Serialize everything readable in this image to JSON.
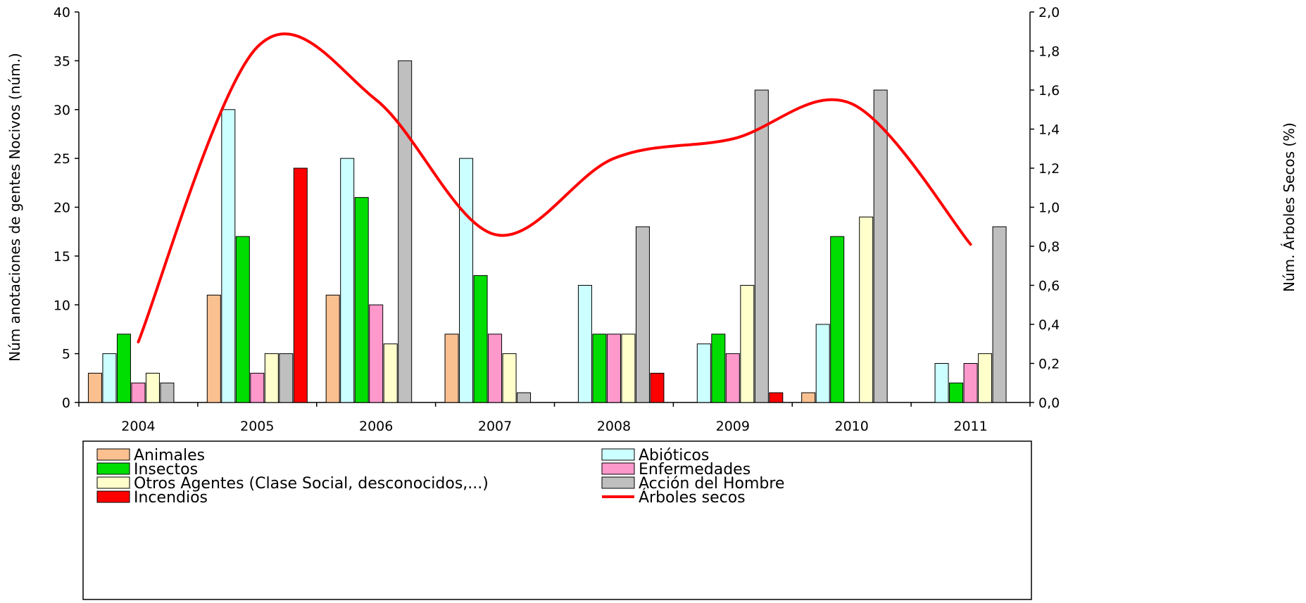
{
  "chart_data": {
    "type": "bar",
    "categories": [
      "2004",
      "2005",
      "2006",
      "2007",
      "2008",
      "2009",
      "2010",
      "2011"
    ],
    "ylabel": "Núm anotaciones de gentes Nocivos (núm.)",
    "y2label": "Núm. Árboles Secos (%)",
    "ylim": [
      0,
      40
    ],
    "y2lim": [
      0,
      2
    ],
    "yticks": [
      "0",
      "5",
      "10",
      "15",
      "20",
      "25",
      "30",
      "35",
      "40"
    ],
    "y2ticks": [
      "0,0",
      "0,2",
      "0,4",
      "0,6",
      "0,8",
      "1,0",
      "1,2",
      "1,4",
      "1,6",
      "1,8",
      "2,0"
    ],
    "grid": false,
    "legend_position": "bottom",
    "series": [
      {
        "name": "Animales",
        "type": "bar",
        "color": "#FAC090",
        "values": [
          3,
          11,
          11,
          7,
          0,
          0,
          1,
          0
        ]
      },
      {
        "name": "Abióticos",
        "type": "bar",
        "color": "#CCFFFF",
        "values": [
          5,
          30,
          25,
          25,
          12,
          6,
          8,
          4
        ]
      },
      {
        "name": "Insectos",
        "type": "bar",
        "color": "#00DD00",
        "values": [
          7,
          17,
          21,
          13,
          7,
          7,
          17,
          2
        ]
      },
      {
        "name": "Enfermedades",
        "type": "bar",
        "color": "#FF99CC",
        "values": [
          2,
          3,
          10,
          7,
          7,
          5,
          0,
          4
        ]
      },
      {
        "name": "Otros Agentes (Clase Social, desconocidos,...)",
        "type": "bar",
        "color": "#FFFFCC",
        "values": [
          3,
          5,
          6,
          5,
          7,
          12,
          19,
          5
        ]
      },
      {
        "name": "Acción del Hombre",
        "type": "bar",
        "color": "#BFBFBF",
        "values": [
          2,
          5,
          35,
          1,
          18,
          32,
          32,
          18
        ]
      },
      {
        "name": "Incendios",
        "type": "bar",
        "color": "#FF0000",
        "values": [
          0,
          24,
          0,
          0,
          3,
          1,
          0,
          0
        ]
      },
      {
        "name": "Árboles secos",
        "type": "line",
        "axis": "right",
        "color": "#FF0000",
        "values": [
          0.31,
          1.82,
          1.55,
          0.86,
          1.25,
          1.35,
          1.53,
          0.81
        ]
      }
    ]
  }
}
